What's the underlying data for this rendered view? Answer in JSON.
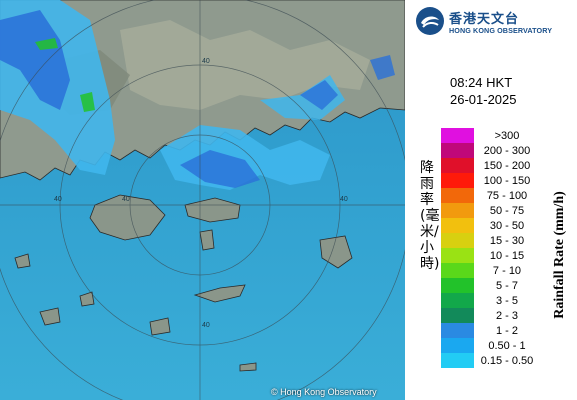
{
  "map": {
    "copyright": "© Hong Kong Observatory",
    "ring_labels": [
      "40",
      "40",
      "40",
      "40",
      "40"
    ],
    "colors": {
      "sea": "#2f9fd0",
      "land": "#8f9a8e",
      "rain_light": "#3fb0e8",
      "rain_mid": "#2a6fd6"
    }
  },
  "logo": {
    "name_zh": "香港天文台",
    "name_en": "HONG KONG OBSERVATORY",
    "icon": "hko-logo-icon"
  },
  "time": "08:24 HKT",
  "date": "26-01-2025",
  "legend": {
    "title_en": "Rainfall Rate (mm/h)",
    "title_zh": "降雨率(毫米/小時)",
    "items": [
      {
        "label": ">300",
        "color": "#e010e0"
      },
      {
        "label": "200 - 300",
        "color": "#c0087a"
      },
      {
        "label": "150 - 200",
        "color": "#e0102a"
      },
      {
        "label": "100 - 150",
        "color": "#ff1a0a"
      },
      {
        "label": "75 - 100",
        "color": "#f2680a"
      },
      {
        "label": "50 - 75",
        "color": "#f29a0e"
      },
      {
        "label": "30 - 50",
        "color": "#f2c00e"
      },
      {
        "label": "15 - 30",
        "color": "#d8d010"
      },
      {
        "label": "10 - 15",
        "color": "#9ae214"
      },
      {
        "label": "7 - 10",
        "color": "#5ad81a"
      },
      {
        "label": "5 - 7",
        "color": "#22c22a"
      },
      {
        "label": "3 - 5",
        "color": "#12a84a"
      },
      {
        "label": "2 - 3",
        "color": "#128a5a"
      },
      {
        "label": "1 - 2",
        "color": "#2a8ae2"
      },
      {
        "label": "0.50 - 1",
        "color": "#1aa8f0"
      },
      {
        "label": "0.15 - 0.50",
        "color": "#22ccf4"
      }
    ]
  }
}
